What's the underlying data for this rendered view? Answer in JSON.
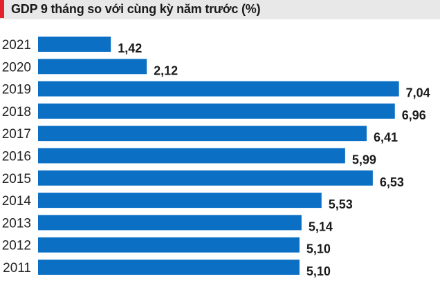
{
  "chart_data": {
    "type": "bar",
    "orientation": "horizontal",
    "title": "GDP 9 tháng so với cùng kỳ năm trước (%)",
    "categories": [
      "2021",
      "2020",
      "2019",
      "2018",
      "2017",
      "2016",
      "2015",
      "2014",
      "2013",
      "2012",
      "2011"
    ],
    "values": [
      1.42,
      2.12,
      7.04,
      6.96,
      6.41,
      5.99,
      6.53,
      5.53,
      5.14,
      5.1,
      5.1
    ],
    "value_labels": [
      "1,42",
      "2,12",
      "7,04",
      "6,96",
      "6,41",
      "5,99",
      "6,53",
      "5,53",
      "5,14",
      "5,10",
      "5,10"
    ],
    "xlabel": "",
    "ylabel": "",
    "grid": false,
    "bar_color": "#0b6fc4",
    "accent_color": "#e2232b"
  }
}
